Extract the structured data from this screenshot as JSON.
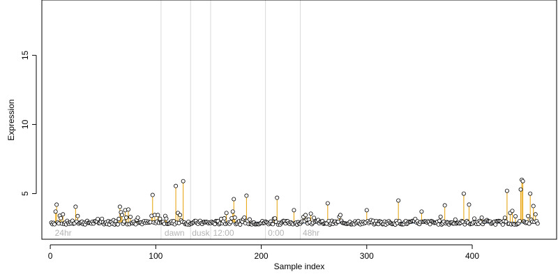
{
  "chart_data": {
    "type": "scatter",
    "title": "",
    "xlabel": "Sample index",
    "ylabel": "Expression",
    "xlim": [
      -8,
      480
    ],
    "ylim": [
      1.7,
      19.0
    ],
    "xticks": [
      0,
      100,
      200,
      300,
      400
    ],
    "yticks": [
      5,
      10,
      15
    ],
    "baseline": 2.9,
    "colors": {
      "spike": "#e69f00",
      "baseline_line": "#9fb7d6",
      "vline": "#d9d9d9",
      "point_fill": "#ffffff",
      "point_stroke": "#000000",
      "region_text": "#b4b4b4"
    },
    "region_lines": [
      105,
      133,
      152,
      204,
      237
    ],
    "region_labels": [
      {
        "text": "24hr",
        "x": 3
      },
      {
        "text": "dawn",
        "x": 107
      },
      {
        "text": "dusk",
        "x": 133
      },
      {
        "text": "12:00",
        "x": 153
      },
      {
        "text": "0:00",
        "x": 205
      },
      {
        "text": "48hr",
        "x": 238
      }
    ],
    "spikes": [
      {
        "x": 5,
        "y": 3.7
      },
      {
        "x": 6,
        "y": 4.2
      },
      {
        "x": 9,
        "y": 3.4
      },
      {
        "x": 12,
        "y": 3.5
      },
      {
        "x": 24,
        "y": 4.05
      },
      {
        "x": 66,
        "y": 4.05
      },
      {
        "x": 67,
        "y": 3.65
      },
      {
        "x": 68,
        "y": 3.45
      },
      {
        "x": 71,
        "y": 3.8
      },
      {
        "x": 74,
        "y": 3.85
      },
      {
        "x": 97,
        "y": 4.9
      },
      {
        "x": 99,
        "y": 3.45
      },
      {
        "x": 102,
        "y": 3.45
      },
      {
        "x": 119,
        "y": 5.55
      },
      {
        "x": 121,
        "y": 3.6
      },
      {
        "x": 123,
        "y": 3.45
      },
      {
        "x": 126,
        "y": 5.9
      },
      {
        "x": 167,
        "y": 3.6
      },
      {
        "x": 173,
        "y": 3.7
      },
      {
        "x": 174,
        "y": 4.6
      },
      {
        "x": 186,
        "y": 4.85
      },
      {
        "x": 215,
        "y": 4.7
      },
      {
        "x": 231,
        "y": 3.8
      },
      {
        "x": 242,
        "y": 3.45
      },
      {
        "x": 247,
        "y": 3.55
      },
      {
        "x": 263,
        "y": 4.3
      },
      {
        "x": 275,
        "y": 3.45
      },
      {
        "x": 300,
        "y": 3.8
      },
      {
        "x": 330,
        "y": 4.5
      },
      {
        "x": 352,
        "y": 3.7
      },
      {
        "x": 374,
        "y": 4.15
      },
      {
        "x": 392,
        "y": 5.0
      },
      {
        "x": 397,
        "y": 4.2
      },
      {
        "x": 433,
        "y": 5.2
      },
      {
        "x": 436,
        "y": 3.6
      },
      {
        "x": 438,
        "y": 3.75
      },
      {
        "x": 446,
        "y": 5.3
      },
      {
        "x": 447,
        "y": 6.0
      },
      {
        "x": 448,
        "y": 5.9
      },
      {
        "x": 455,
        "y": 5.0
      },
      {
        "x": 458,
        "y": 4.1
      },
      {
        "x": 460,
        "y": 3.5
      }
    ]
  }
}
